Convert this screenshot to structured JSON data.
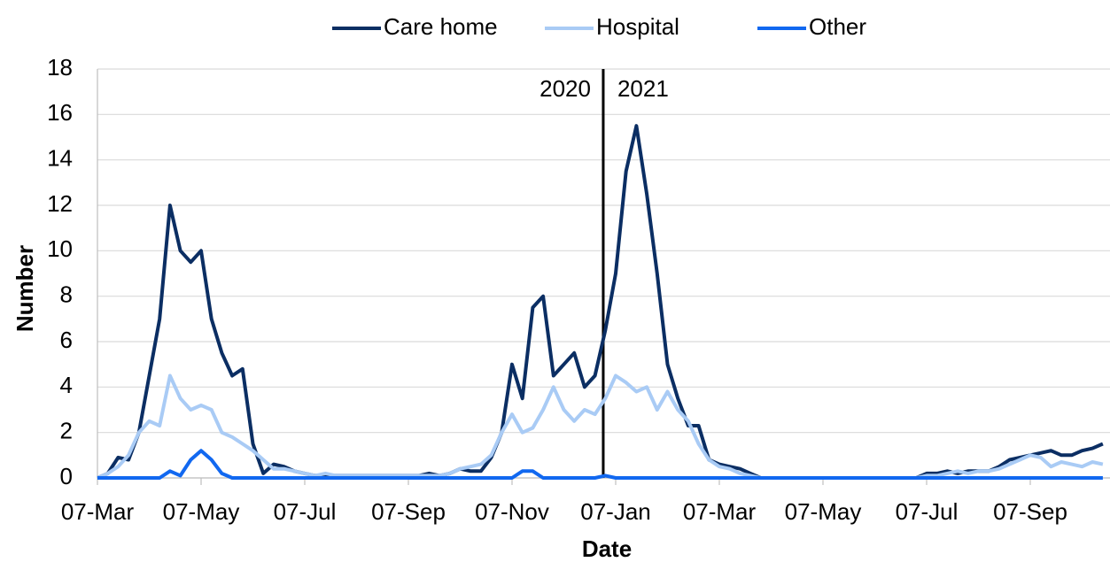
{
  "chart_data": {
    "type": "line",
    "x_label": "Date",
    "y_label": "Number",
    "categories": [
      "07-Mar",
      null,
      null,
      null,
      null,
      null,
      null,
      null,
      null,
      null,
      "07-May",
      null,
      null,
      null,
      null,
      null,
      null,
      null,
      null,
      null,
      "07-Jul",
      null,
      null,
      null,
      null,
      null,
      null,
      null,
      null,
      null,
      "07-Sep",
      null,
      null,
      null,
      null,
      null,
      null,
      null,
      null,
      null,
      "07-Nov",
      null,
      null,
      null,
      null,
      null,
      null,
      null,
      null,
      null,
      "07-Jan",
      null,
      null,
      null,
      null,
      null,
      null,
      null,
      null,
      null,
      "07-Mar",
      null,
      null,
      null,
      null,
      null,
      null,
      null,
      null,
      null,
      "07-May",
      null,
      null,
      null,
      null,
      null,
      null,
      null,
      null,
      null,
      "07-Jul",
      null,
      null,
      null,
      null,
      null,
      null,
      null,
      null,
      null,
      "07-Sep",
      null,
      null,
      null,
      null,
      null,
      null,
      null
    ],
    "series": [
      {
        "name": "Care home",
        "color": "#0b2e63",
        "values": [
          0,
          0.2,
          0.9,
          0.8,
          2,
          4.5,
          7,
          12,
          10,
          9.5,
          10,
          7,
          5.5,
          4.5,
          4.8,
          1.5,
          0.2,
          0.6,
          0.5,
          0.3,
          0.2,
          0.1,
          0.1,
          0.1,
          0.1,
          0.1,
          0.1,
          0.1,
          0.1,
          0.1,
          0.1,
          0.1,
          0.2,
          0.1,
          0.2,
          0.4,
          0.3,
          0.3,
          0.9,
          2,
          5,
          3.5,
          7.5,
          8,
          4.5,
          5,
          5.5,
          4,
          4.5,
          6.5,
          9,
          13.5,
          15.5,
          12.5,
          9,
          5,
          3.5,
          2.3,
          2.3,
          0.8,
          0.6,
          0.5,
          0.4,
          0.2,
          0,
          0,
          0,
          0,
          0,
          0,
          0,
          0,
          0,
          0,
          0,
          0,
          0,
          0,
          0,
          0,
          0.2,
          0.2,
          0.3,
          0.2,
          0.3,
          0.3,
          0.3,
          0.5,
          0.8,
          0.9,
          1,
          1.1,
          1.2,
          1,
          1,
          1.2,
          1.3,
          1.5
        ]
      },
      {
        "name": "Hospital",
        "color": "#a9cbf5",
        "values": [
          0,
          0.2,
          0.5,
          1,
          2,
          2.5,
          2.3,
          4.5,
          3.5,
          3,
          3.2,
          3,
          2,
          1.8,
          1.5,
          1.2,
          0.8,
          0.4,
          0.4,
          0.3,
          0.2,
          0.1,
          0.2,
          0.1,
          0.1,
          0.1,
          0.1,
          0.1,
          0.1,
          0.1,
          0.1,
          0.1,
          0.1,
          0.1,
          0.2,
          0.4,
          0.5,
          0.6,
          1,
          2,
          2.8,
          2,
          2.2,
          3,
          4,
          3,
          2.5,
          3,
          2.8,
          3.5,
          4.5,
          4.2,
          3.8,
          4,
          3,
          3.8,
          3,
          2.5,
          1.5,
          0.8,
          0.5,
          0.4,
          0.2,
          0.1,
          0,
          0,
          0,
          0,
          0,
          0,
          0,
          0,
          0,
          0,
          0,
          0,
          0,
          0,
          0,
          0,
          0.1,
          0.1,
          0.2,
          0.3,
          0.2,
          0.3,
          0.3,
          0.4,
          0.6,
          0.8,
          1,
          0.9,
          0.5,
          0.7,
          0.6,
          0.5,
          0.7,
          0.6
        ]
      },
      {
        "name": "Other",
        "color": "#1168f0",
        "values": [
          0,
          0,
          0,
          0,
          0,
          0,
          0,
          0.3,
          0.1,
          0.8,
          1.2,
          0.8,
          0.2,
          0,
          0,
          0,
          0,
          0,
          0,
          0,
          0,
          0,
          0,
          0,
          0,
          0,
          0,
          0,
          0,
          0,
          0,
          0,
          0,
          0,
          0,
          0,
          0,
          0,
          0,
          0,
          0,
          0.3,
          0.3,
          0,
          0,
          0,
          0,
          0,
          0,
          0.1,
          0,
          0,
          0,
          0,
          0,
          0,
          0,
          0,
          0,
          0,
          0,
          0,
          0,
          0,
          0,
          0,
          0,
          0,
          0,
          0,
          0,
          0,
          0,
          0,
          0,
          0,
          0,
          0,
          0,
          0,
          0,
          0,
          0,
          0,
          0,
          0,
          0,
          0,
          0,
          0,
          0,
          0,
          0,
          0,
          0,
          0,
          0,
          0
        ]
      }
    ],
    "annotations": [
      "2020",
      "2021"
    ],
    "ylim": [
      0,
      18
    ],
    "yticks": [
      0,
      2,
      4,
      6,
      8,
      10,
      12,
      14,
      16,
      18
    ],
    "grid": true,
    "legend": "top"
  }
}
